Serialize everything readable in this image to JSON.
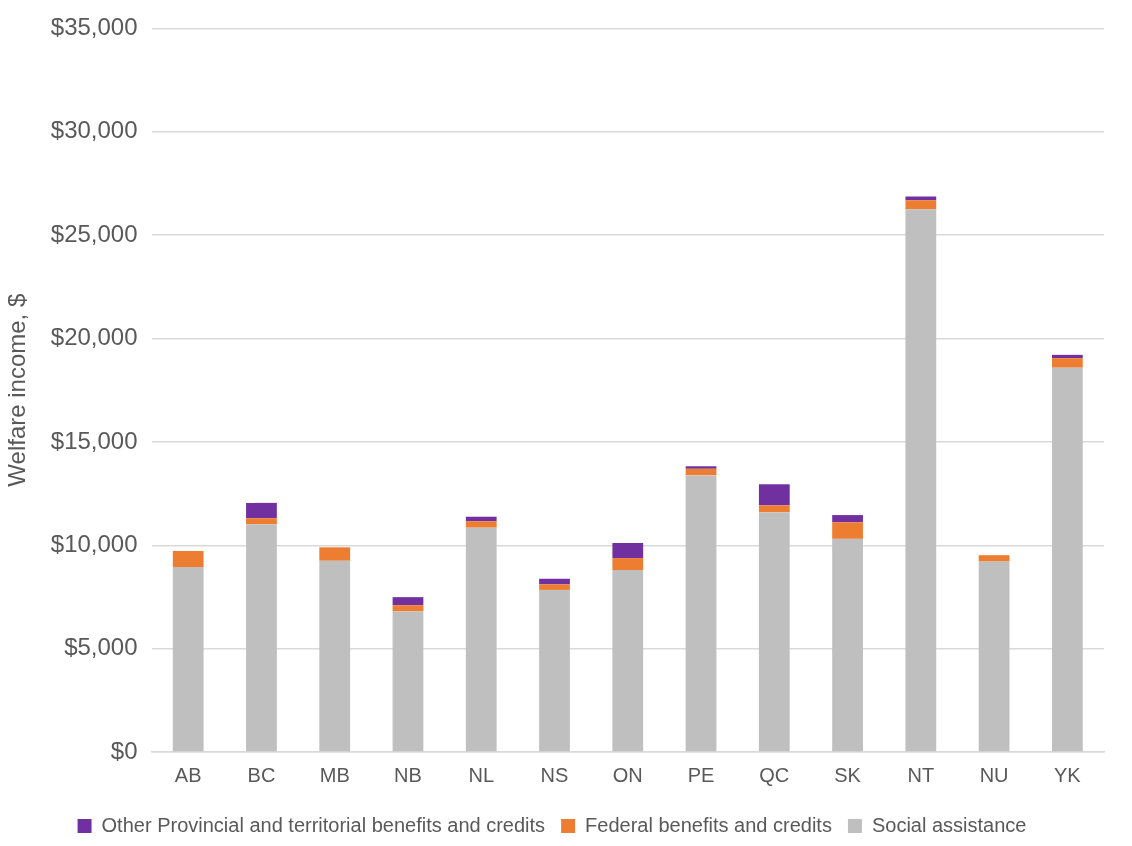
{
  "chart_data": {
    "type": "bar",
    "stacked": true,
    "ylabel": "Welfare income, $",
    "categories": [
      "AB",
      "BC",
      "MB",
      "NB",
      "NL",
      "NS",
      "ON",
      "PE",
      "QC",
      "SK",
      "NT",
      "NU",
      "YK"
    ],
    "series": [
      {
        "name": "Social assistance",
        "color": "#bfbfbf",
        "values": [
          8950,
          11020,
          9250,
          6800,
          10850,
          7840,
          8800,
          13380,
          11590,
          10310,
          26250,
          9210,
          18590
        ]
      },
      {
        "name": "Federal benefits and credits",
        "color": "#ed7d31",
        "values": [
          770,
          290,
          650,
          300,
          310,
          270,
          580,
          320,
          340,
          800,
          440,
          310,
          460
        ]
      },
      {
        "name": "Other Provincial and territorial benefits and credits",
        "color": "#7030a0",
        "values": [
          0,
          740,
          0,
          390,
          220,
          270,
          730,
          120,
          1020,
          350,
          180,
          0,
          160
        ]
      }
    ],
    "ylim": [
      0,
      35000
    ],
    "yticks": [
      {
        "value": 0,
        "label": "$0"
      },
      {
        "value": 5000,
        "label": "$5,000"
      },
      {
        "value": 10000,
        "label": "$10,000"
      },
      {
        "value": 15000,
        "label": "$15,000"
      },
      {
        "value": 20000,
        "label": "$20,000"
      },
      {
        "value": 25000,
        "label": "$25,000"
      },
      {
        "value": 30000,
        "label": "$30,000"
      },
      {
        "value": 35000,
        "label": "$35,000"
      }
    ],
    "grid": "y",
    "legend": "bottom"
  }
}
